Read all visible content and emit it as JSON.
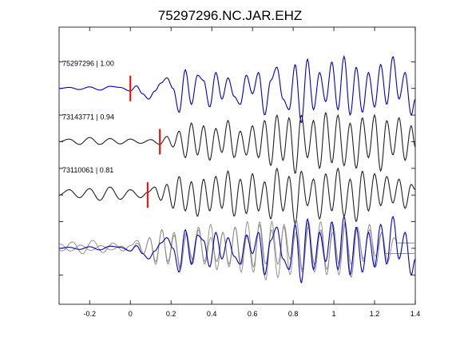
{
  "chart_data": {
    "type": "line",
    "title": "75297296.NC.JAR.EHZ",
    "xlabel": "",
    "ylabel": "",
    "xlim": [
      -0.35,
      1.4
    ],
    "xticks": [
      -0.2,
      0,
      0.2,
      0.4,
      0.6,
      0.8,
      1,
      1.2,
      1.4
    ],
    "xtick_labels": [
      "-0.2",
      "0",
      "0.2",
      "0.4",
      "0.6",
      "0.8",
      "1",
      "1.2",
      "1.4"
    ],
    "ylim": [
      -0.55,
      4.65
    ],
    "yticks": [
      0,
      0.5,
      1,
      1.5,
      2,
      2.5,
      3,
      3.5,
      4
    ],
    "grid": false,
    "legend": "none",
    "colors": {
      "reference": "#0000cc",
      "other": "#222222",
      "overlay_other": "#888888",
      "pick": "#ff0000"
    },
    "traces": [
      {
        "label": "75297296 | 1.00",
        "offset": 3.5,
        "pick_time": 0.0,
        "color": "reference",
        "x": [
          -0.35,
          -0.3,
          -0.25,
          -0.2,
          -0.15,
          -0.1,
          -0.05,
          0.0,
          0.03,
          0.06,
          0.09,
          0.12,
          0.15,
          0.18,
          0.21,
          0.24,
          0.27,
          0.3,
          0.33,
          0.36,
          0.39,
          0.42,
          0.45,
          0.48,
          0.51,
          0.54,
          0.57,
          0.6,
          0.63,
          0.66,
          0.69,
          0.72,
          0.75,
          0.78,
          0.81,
          0.84,
          0.87,
          0.9,
          0.93,
          0.96,
          0.99,
          1.02,
          1.05,
          1.08,
          1.11,
          1.14,
          1.17,
          1.2,
          1.23,
          1.26,
          1.29,
          1.32,
          1.35,
          1.38,
          1.4
        ],
        "y": [
          0.0,
          0.02,
          -0.02,
          0.03,
          -0.03,
          0.04,
          0.02,
          -0.05,
          0.05,
          -0.1,
          -0.2,
          -0.05,
          0.1,
          0.2,
          0.0,
          -0.45,
          0.35,
          -0.3,
          0.25,
          0.15,
          -0.35,
          0.3,
          -0.2,
          0.2,
          -0.15,
          -0.3,
          0.25,
          -0.1,
          0.3,
          -0.5,
          0.15,
          0.4,
          -0.2,
          -0.4,
          0.45,
          -0.65,
          0.55,
          -0.4,
          0.3,
          -0.25,
          0.5,
          -0.4,
          0.6,
          -0.5,
          0.4,
          -0.45,
          0.3,
          -0.35,
          0.45,
          -0.3,
          0.6,
          -0.2,
          0.3,
          -0.5,
          -0.2
        ]
      },
      {
        "label": "73143771 | 0.94",
        "offset": 2.5,
        "pick_time": 0.145,
        "color": "other",
        "x": [
          -0.35,
          -0.3,
          -0.25,
          -0.2,
          -0.15,
          -0.1,
          -0.05,
          0.0,
          0.05,
          0.1,
          0.145,
          0.18,
          0.21,
          0.24,
          0.27,
          0.3,
          0.33,
          0.36,
          0.39,
          0.42,
          0.45,
          0.48,
          0.51,
          0.54,
          0.57,
          0.6,
          0.63,
          0.66,
          0.69,
          0.72,
          0.75,
          0.78,
          0.81,
          0.84,
          0.87,
          0.9,
          0.93,
          0.96,
          0.99,
          1.02,
          1.05,
          1.08,
          1.11,
          1.14,
          1.17,
          1.2,
          1.23,
          1.26,
          1.29,
          1.32,
          1.35,
          1.38,
          1.4
        ],
        "y": [
          0.0,
          0.05,
          -0.05,
          0.08,
          -0.05,
          0.06,
          -0.04,
          0.05,
          -0.03,
          0.04,
          -0.05,
          0.1,
          -0.1,
          0.2,
          -0.3,
          0.35,
          -0.25,
          0.3,
          -0.35,
          0.25,
          -0.2,
          0.4,
          -0.3,
          0.2,
          -0.25,
          0.3,
          -0.3,
          0.4,
          -0.45,
          0.5,
          -0.35,
          0.45,
          -0.6,
          0.5,
          -0.3,
          0.4,
          -0.5,
          0.55,
          -0.4,
          0.5,
          -0.45,
          0.35,
          -0.5,
          0.45,
          -0.3,
          0.5,
          -0.55,
          0.4,
          -0.25,
          0.45,
          -0.35,
          0.3,
          -0.1
        ]
      },
      {
        "label": "73110061 | 0.81",
        "offset": 1.5,
        "pick_time": 0.085,
        "color": "other",
        "x": [
          -0.35,
          -0.3,
          -0.25,
          -0.2,
          -0.15,
          -0.1,
          -0.05,
          0.0,
          0.05,
          0.085,
          0.12,
          0.15,
          0.18,
          0.21,
          0.24,
          0.27,
          0.3,
          0.33,
          0.36,
          0.39,
          0.42,
          0.45,
          0.48,
          0.51,
          0.54,
          0.57,
          0.6,
          0.63,
          0.66,
          0.69,
          0.72,
          0.75,
          0.78,
          0.81,
          0.84,
          0.87,
          0.9,
          0.93,
          0.96,
          0.99,
          1.02,
          1.05,
          1.08,
          1.11,
          1.14,
          1.17,
          1.2,
          1.23,
          1.26,
          1.29,
          1.32,
          1.35,
          1.38,
          1.4
        ],
        "y": [
          0.0,
          0.1,
          -0.05,
          0.12,
          -0.1,
          0.15,
          -0.08,
          0.1,
          -0.05,
          0.05,
          0.15,
          -0.1,
          0.2,
          -0.25,
          0.35,
          -0.3,
          0.25,
          -0.4,
          0.3,
          -0.3,
          0.35,
          -0.25,
          0.45,
          -0.4,
          0.3,
          -0.35,
          0.4,
          -0.3,
          0.25,
          -0.45,
          0.5,
          -0.3,
          0.35,
          -0.55,
          0.45,
          -0.2,
          0.3,
          -0.45,
          0.4,
          -0.3,
          0.5,
          -0.4,
          0.3,
          -0.5,
          0.45,
          -0.3,
          0.4,
          -0.2,
          0.35,
          -0.15,
          0.3,
          -0.25,
          0.2,
          0.1
        ]
      }
    ],
    "overlay": {
      "offset": 0.5
    }
  }
}
